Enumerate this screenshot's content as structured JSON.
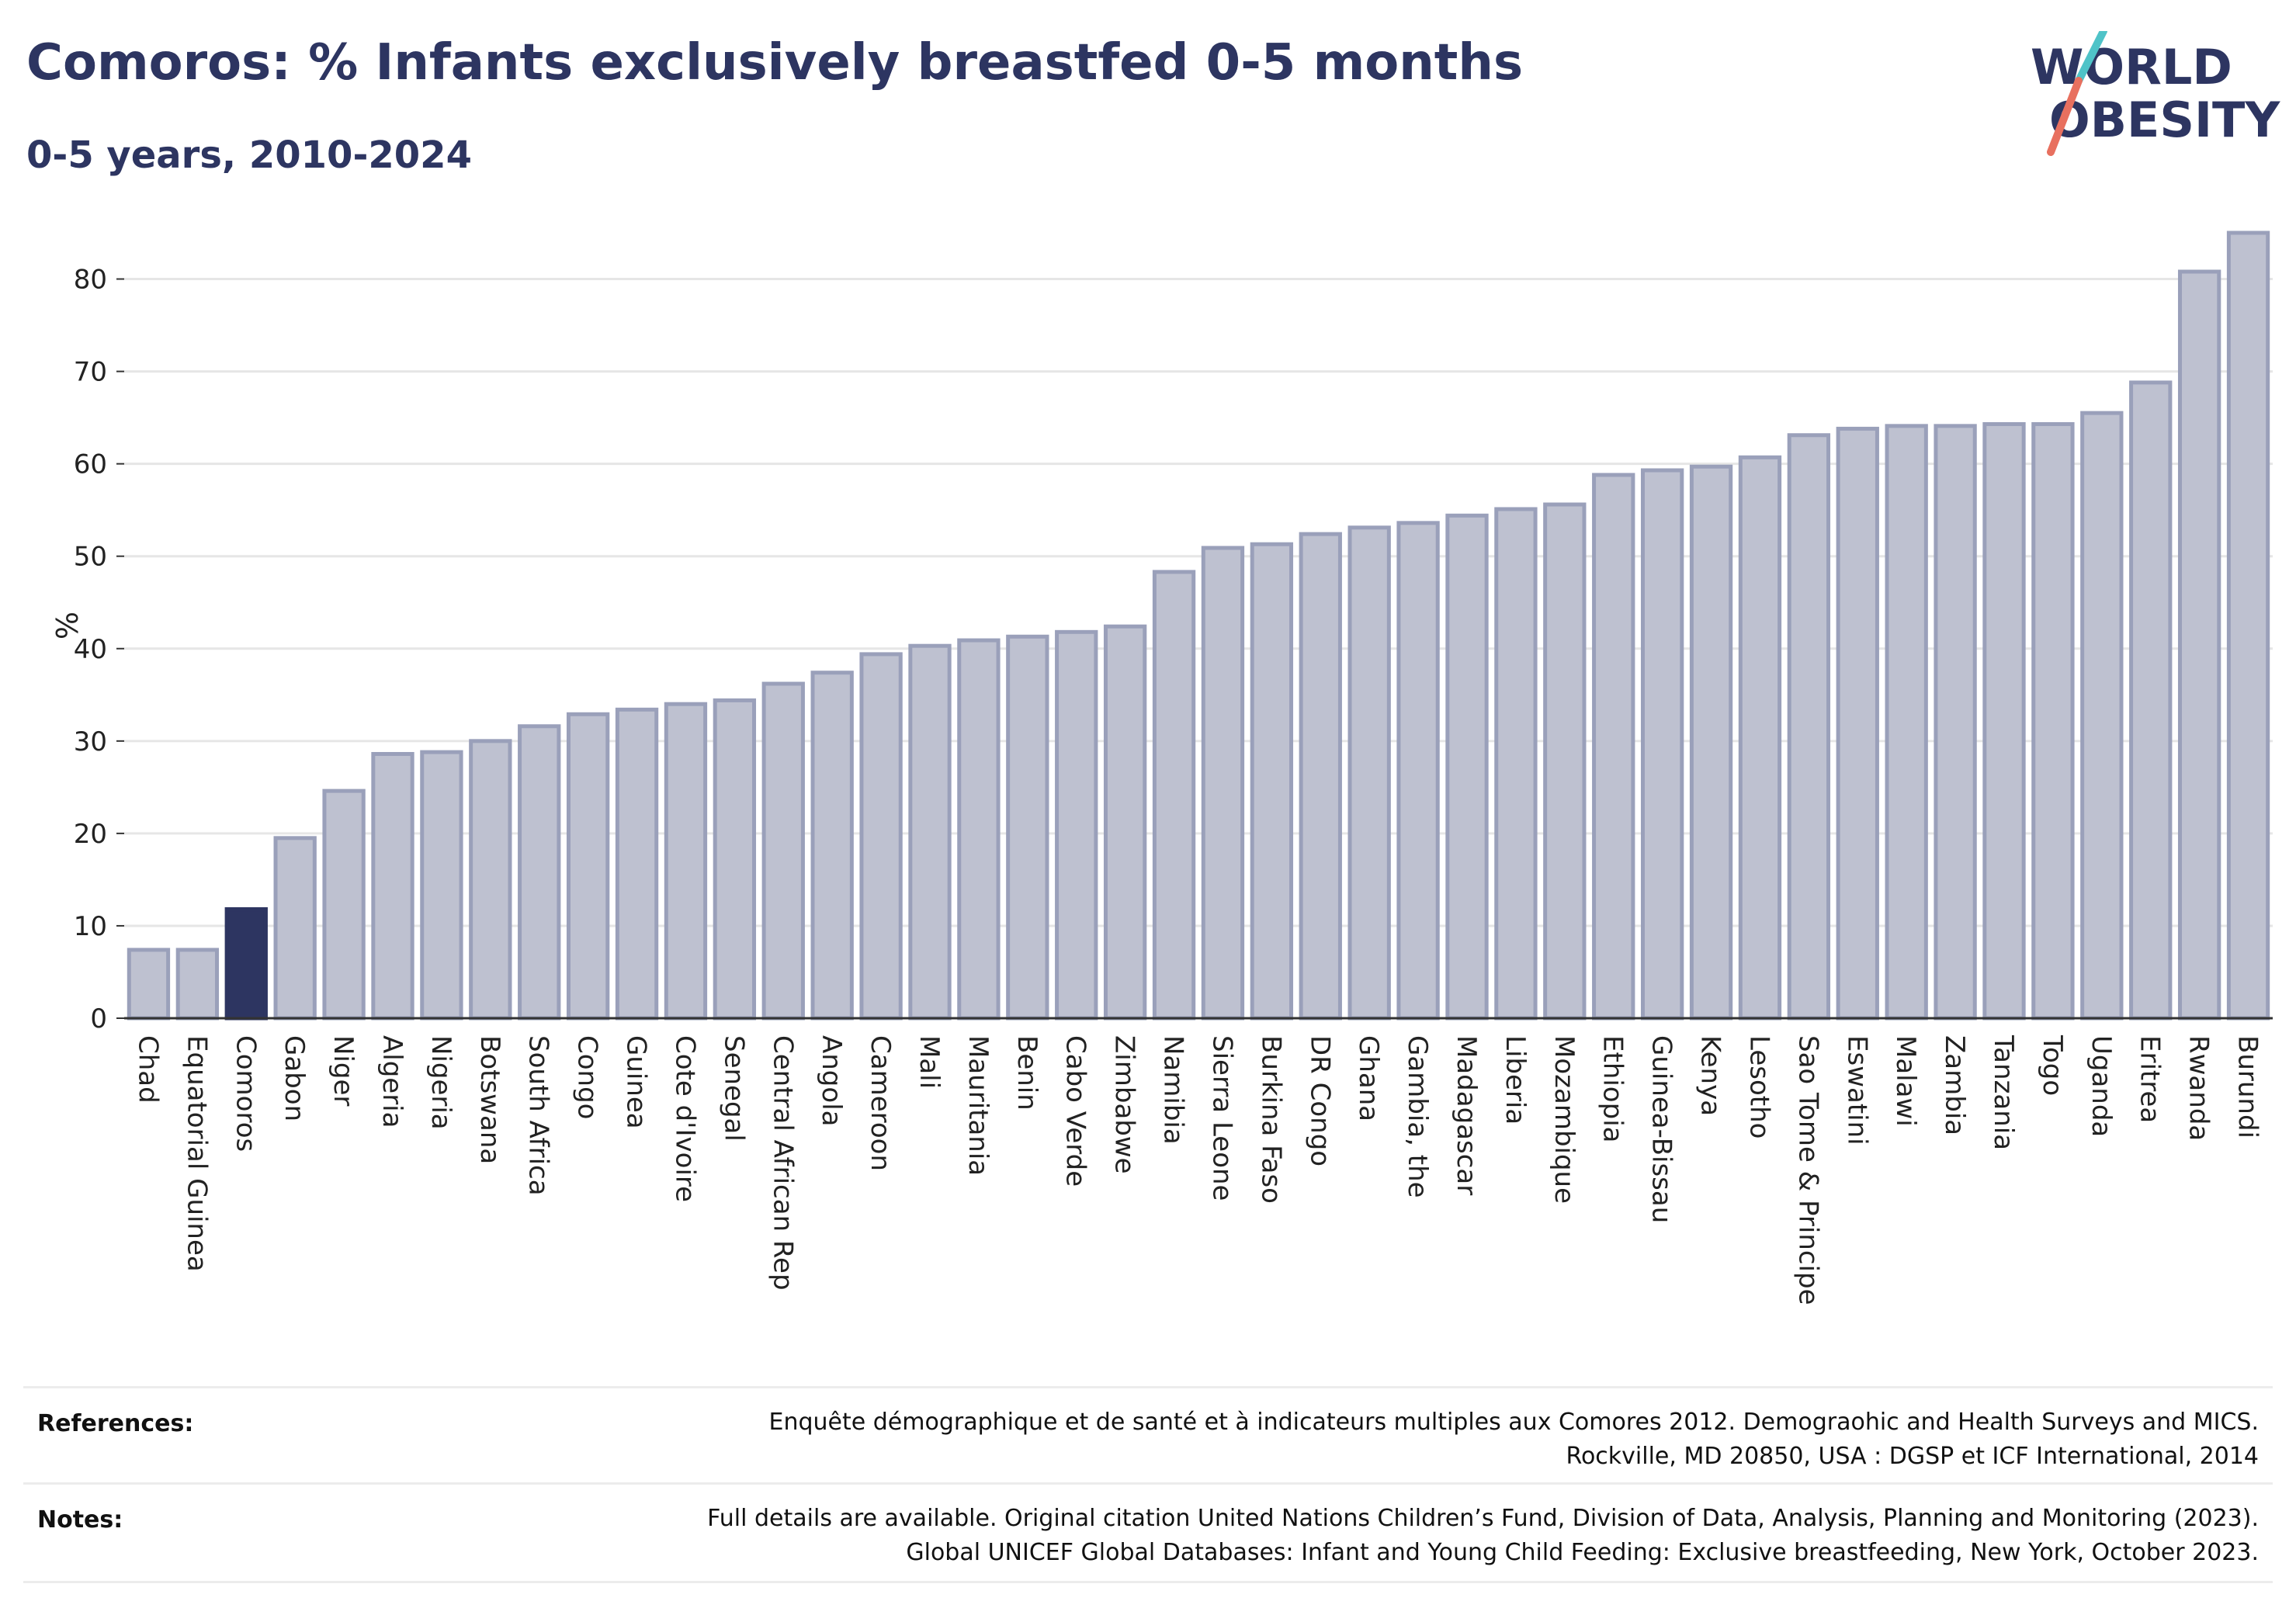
{
  "header": {
    "title": "Comoros: % Infants exclusively breastfed 0-5 months",
    "subtitle": "0-5 years, 2010-2024"
  },
  "logo": {
    "line1": "WORLD",
    "line2": "OBESITY",
    "colors": {
      "text": "#2d3561",
      "slash_top": "#4fc3c8",
      "slash_bottom": "#e8705f"
    }
  },
  "chart_data": {
    "type": "bar",
    "ylabel": "%",
    "ylim": [
      0,
      85
    ],
    "yticks": [
      0,
      10,
      20,
      30,
      40,
      50,
      60,
      70,
      80
    ],
    "grid": true,
    "highlight": "Comoros",
    "colors": {
      "bar": "#bec1d0",
      "bar_edge": "#9aa0ba",
      "highlight": "#2d3561",
      "grid": "#e6e6e6",
      "axis": "#333333"
    },
    "categories": [
      "Chad",
      "Equatorial Guinea",
      "Comoros",
      "Gabon",
      "Niger",
      "Algeria",
      "Nigeria",
      "Botswana",
      "South Africa",
      "Congo",
      "Guinea",
      "Cote d'Ivoire",
      "Senegal",
      "Central African Rep",
      "Angola",
      "Cameroon",
      "Mali",
      "Mauritania",
      "Benin",
      "Cabo Verde",
      "Zimbabwe",
      "Namibia",
      "Sierra Leone",
      "Burkina Faso",
      "DR Congo",
      "Ghana",
      "Gambia, the",
      "Madagascar",
      "Liberia",
      "Mozambique",
      "Ethiopia",
      "Guinea-Bissau",
      "Kenya",
      "Lesotho",
      "Sao Tome & Principe",
      "Eswatini",
      "Malawi",
      "Zambia",
      "Tanzania",
      "Togo",
      "Uganda",
      "Eritrea",
      "Rwanda",
      "Burundi"
    ],
    "values": [
      7.4,
      7.4,
      11.8,
      19.5,
      24.6,
      28.6,
      28.8,
      30.0,
      31.6,
      32.9,
      33.4,
      34.0,
      34.4,
      36.2,
      37.4,
      39.4,
      40.3,
      40.9,
      41.3,
      41.8,
      42.4,
      48.3,
      50.9,
      51.3,
      52.4,
      53.1,
      53.6,
      54.4,
      55.1,
      55.6,
      58.8,
      59.3,
      59.7,
      60.7,
      63.1,
      63.8,
      64.1,
      64.1,
      64.3,
      64.3,
      65.5,
      68.8,
      80.8,
      85.0
    ]
  },
  "footer": {
    "references_label": "References:",
    "references_line1": "Enquête démographique et de santé et à indicateurs multiples aux Comores 2012. Demograohic and Health Surveys and MICS.",
    "references_line2": "Rockville, MD 20850, USA : DGSP et ICF International, 2014",
    "notes_label": "Notes:",
    "notes_line1": "Full details are available. Original citation United Nations Children’s Fund, Division of Data, Analysis, Planning and Monitoring (2023).",
    "notes_line2": "Global UNICEF Global Databases: Infant and Young Child Feeding: Exclusive breastfeeding, New York, October 2023."
  }
}
